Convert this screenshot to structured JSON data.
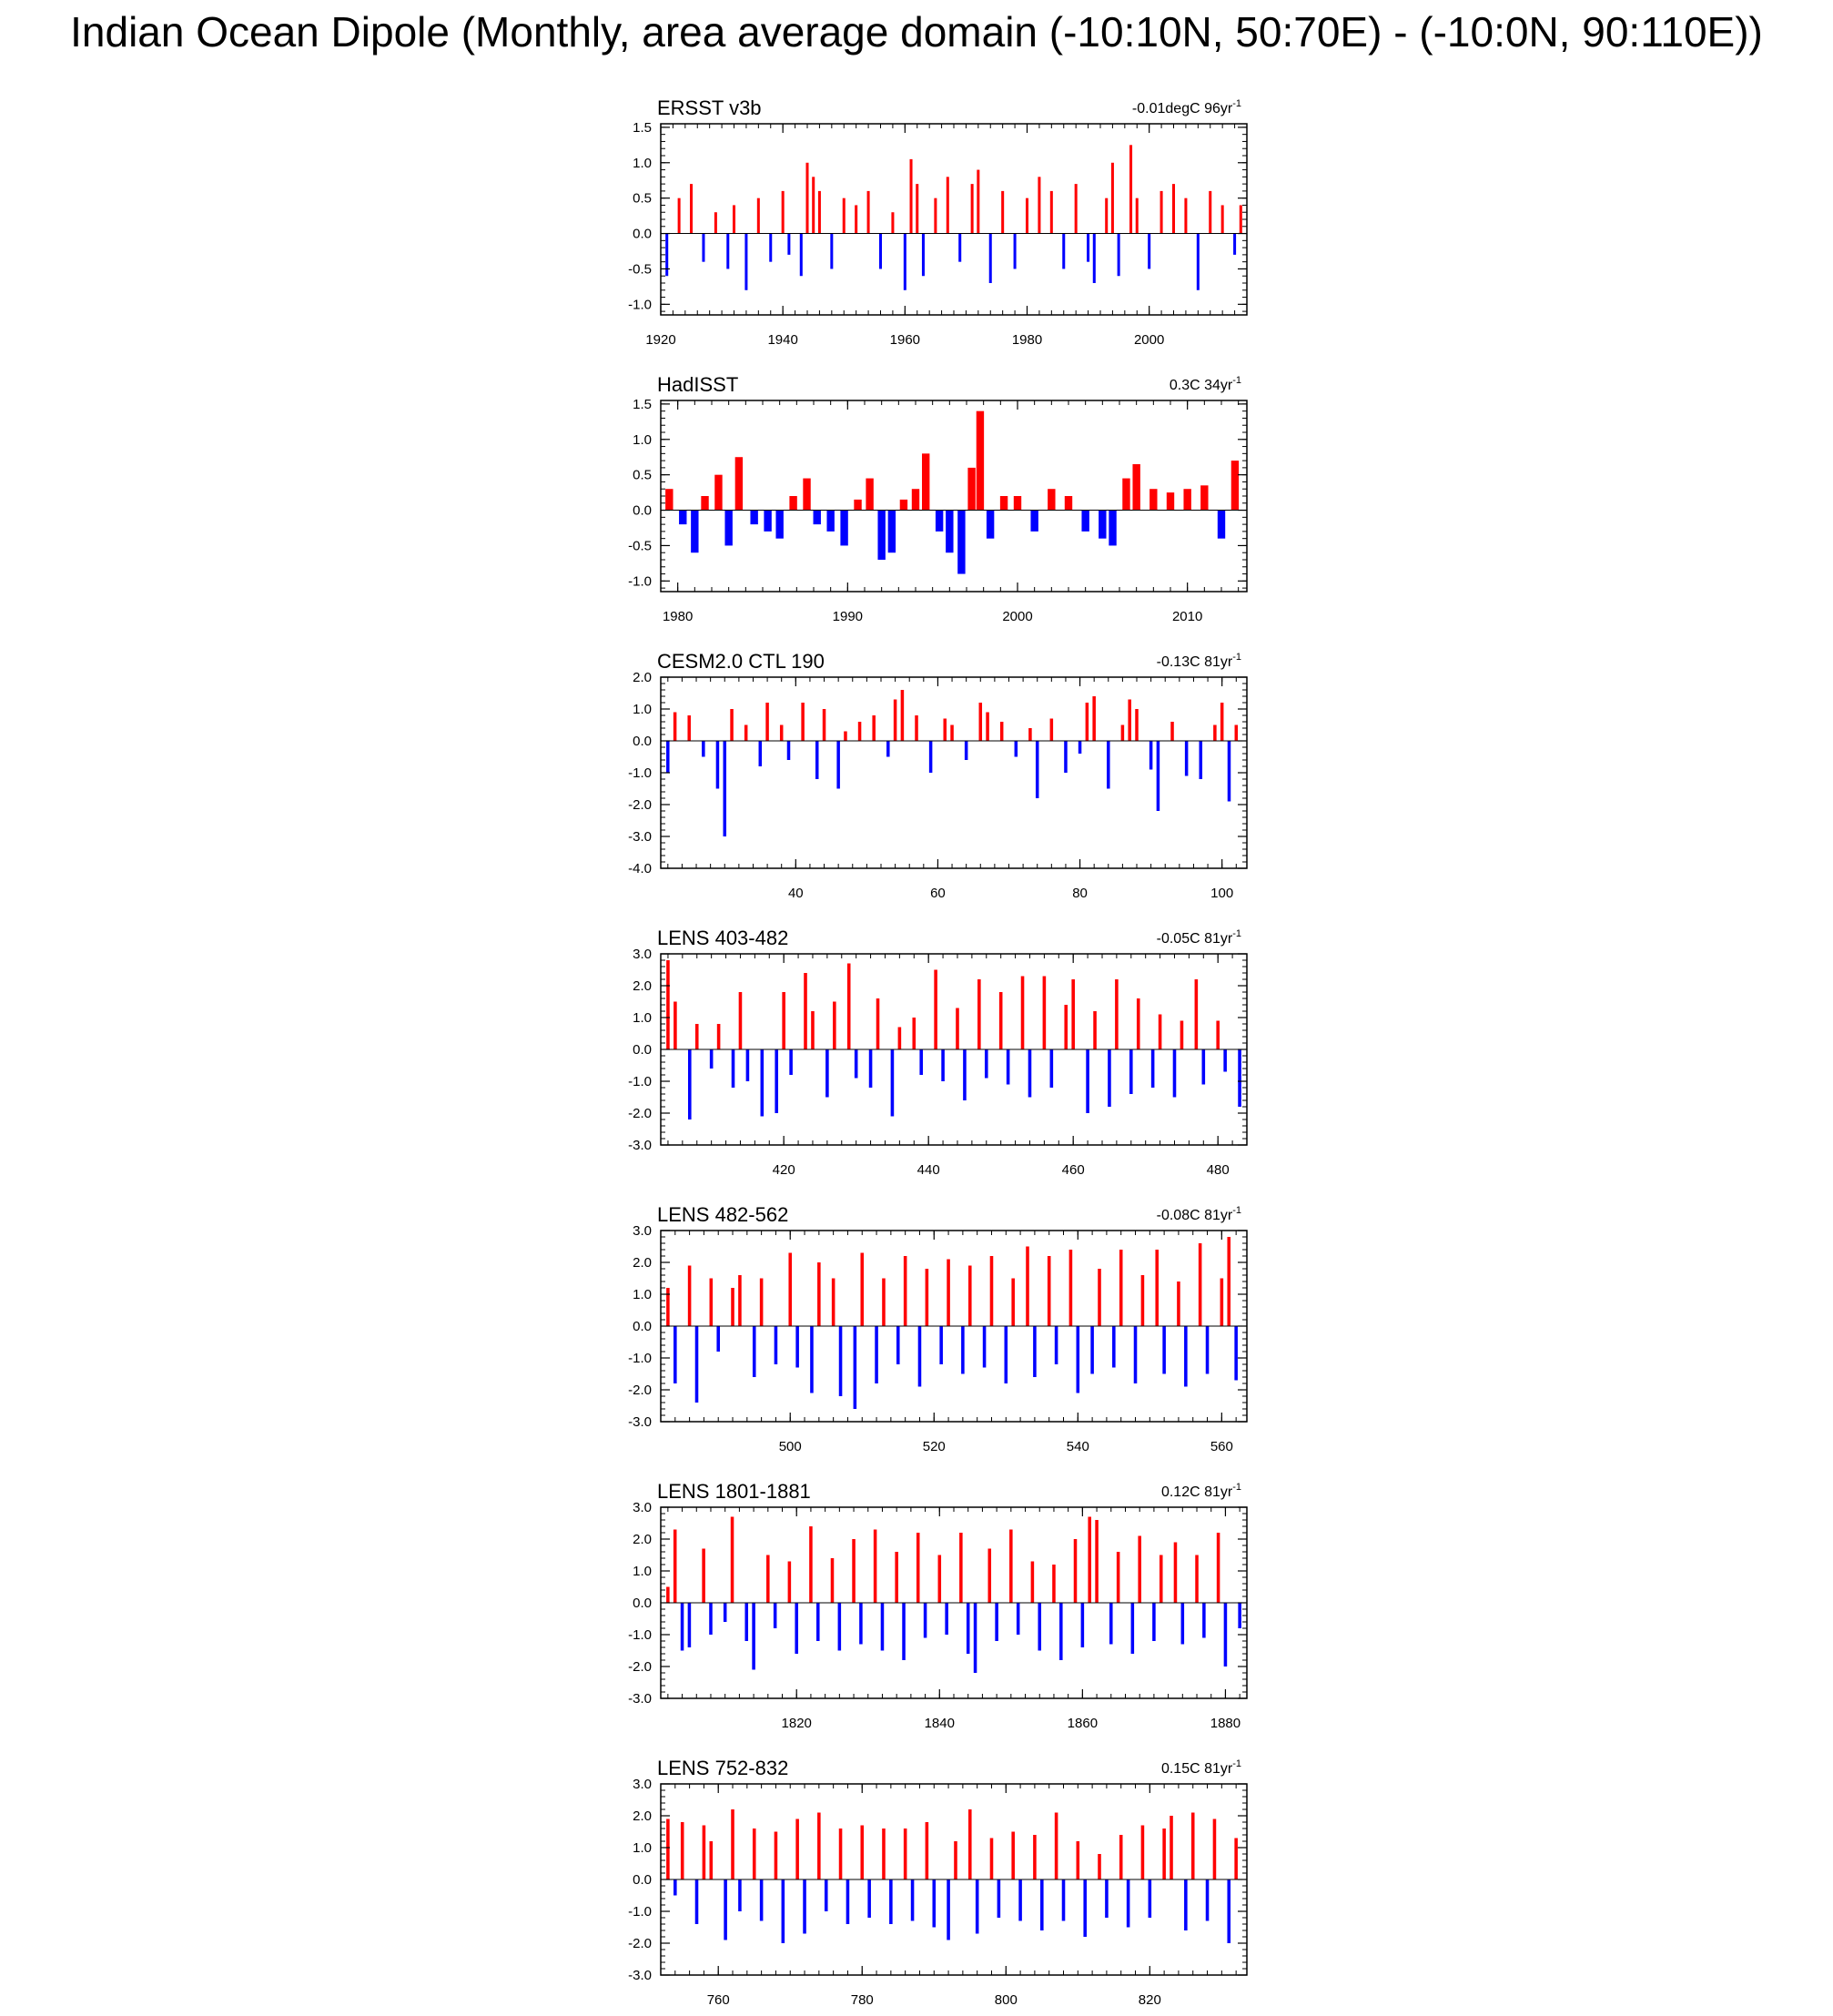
{
  "title": "Indian Ocean Dipole (Monthly, area average domain (-10:10N, 50:70E) - (-10:0N, 90:110E))",
  "colors": {
    "positive": "#ff0000",
    "negative": "#0000ff",
    "axis": "#000000",
    "zero": "#000000"
  },
  "chart_data": [
    {
      "type": "bar",
      "title": "ERSST v3b",
      "trend": "-0.01degC 96yr",
      "trend_sup": "-1",
      "xlim": [
        1920,
        2016
      ],
      "ylim": [
        -1.15,
        1.55
      ],
      "xticks": [
        1920,
        1940,
        1960,
        1980,
        2000
      ],
      "xtick_labels": [
        "1920",
        "1940",
        "1960",
        "1980",
        "2000"
      ],
      "yticks": [
        -1.0,
        -0.5,
        0.0,
        0.5,
        1.0,
        1.5
      ],
      "ytick_labels": [
        "-1.0",
        "-0.5",
        "0.0",
        "0.5",
        "1.0",
        "1.5"
      ],
      "series": [
        {
          "x": [
            1921,
            1923,
            1925,
            1927,
            1929,
            1931,
            1932,
            1934,
            1936,
            1938,
            1940,
            1941,
            1943,
            1944,
            1945,
            1946,
            1948,
            1950,
            1952,
            1954,
            1956,
            1958,
            1960,
            1961,
            1962,
            1963,
            1965,
            1967,
            1969,
            1971,
            1972,
            1974,
            1976,
            1978,
            1980,
            1982,
            1984,
            1986,
            1988,
            1990,
            1991,
            1993,
            1994,
            1995,
            1997,
            1998,
            2000,
            2002,
            2004,
            2006,
            2008,
            2010,
            2012,
            2014,
            2015
          ],
          "values": [
            -0.6,
            0.5,
            0.7,
            -0.4,
            0.3,
            -0.5,
            0.4,
            -0.8,
            0.5,
            -0.4,
            0.6,
            -0.3,
            -0.6,
            1.0,
            0.8,
            0.6,
            -0.5,
            0.5,
            0.4,
            0.6,
            -0.5,
            0.3,
            -0.8,
            1.05,
            0.7,
            -0.6,
            0.5,
            0.8,
            -0.4,
            0.7,
            0.9,
            -0.7,
            0.6,
            -0.5,
            0.5,
            0.8,
            0.6,
            -0.5,
            0.7,
            -0.4,
            -0.7,
            0.5,
            1.0,
            -0.6,
            1.25,
            0.5,
            -0.5,
            0.6,
            0.7,
            0.5,
            -0.8,
            0.6,
            0.4,
            -0.3,
            0.4
          ]
        }
      ]
    },
    {
      "type": "bar",
      "title": "HadISST",
      "trend": "0.3C 34yr",
      "trend_sup": "-1",
      "xlim": [
        1979,
        2013.5
      ],
      "ylim": [
        -1.15,
        1.55
      ],
      "xticks": [
        1980,
        1990,
        2000,
        2010
      ],
      "xtick_labels": [
        "1980",
        "1990",
        "2000",
        "2010"
      ],
      "yticks": [
        -1.0,
        -0.5,
        0.0,
        0.5,
        1.0,
        1.5
      ],
      "ytick_labels": [
        "-1.0",
        "-0.5",
        "0.0",
        "0.5",
        "1.0",
        "1.5"
      ],
      "series": [
        {
          "x": [
            1979.5,
            1980.3,
            1981,
            1981.6,
            1982.4,
            1983,
            1983.6,
            1984.5,
            1985.3,
            1986,
            1986.8,
            1987.6,
            1988.2,
            1989,
            1989.8,
            1990.6,
            1991.3,
            1992,
            1992.6,
            1993.3,
            1994,
            1994.6,
            1995.4,
            1996,
            1996.7,
            1997.3,
            1997.8,
            1998.4,
            1999.2,
            2000,
            2001,
            2002,
            2003,
            2004,
            2005,
            2005.6,
            2006.4,
            2007,
            2008,
            2009,
            2010,
            2011,
            2012,
            2012.8
          ],
          "values": [
            0.3,
            -0.2,
            -0.6,
            0.2,
            0.5,
            -0.5,
            0.75,
            -0.2,
            -0.3,
            -0.4,
            0.2,
            0.45,
            -0.2,
            -0.3,
            -0.5,
            0.15,
            0.45,
            -0.7,
            -0.6,
            0.15,
            0.3,
            0.8,
            -0.3,
            -0.6,
            -0.9,
            0.6,
            1.4,
            -0.4,
            0.2,
            0.2,
            -0.3,
            0.3,
            0.2,
            -0.3,
            -0.4,
            -0.5,
            0.45,
            0.65,
            0.3,
            0.25,
            0.3,
            0.35,
            -0.4,
            0.7
          ]
        }
      ]
    },
    {
      "type": "bar",
      "title": "CESM2.0 CTL 190",
      "trend": "-0.13C 81yr",
      "trend_sup": "-1",
      "xlim": [
        21,
        103.5
      ],
      "ylim": [
        -4.0,
        2.0
      ],
      "xticks": [
        40,
        60,
        80,
        100
      ],
      "xtick_labels": [
        "40",
        "60",
        "80",
        "100"
      ],
      "yticks": [
        -4.0,
        -3.0,
        -2.0,
        -1.0,
        0.0,
        1.0,
        2.0
      ],
      "ytick_labels": [
        "-4.0",
        "-3.0",
        "-2.0",
        "-1.0",
        "0.0",
        "1.0",
        "2.0"
      ],
      "series": [
        {
          "x": [
            22,
            23,
            25,
            27,
            29,
            30,
            31,
            33,
            35,
            36,
            38,
            39,
            41,
            43,
            44,
            46,
            47,
            49,
            51,
            53,
            54,
            55,
            57,
            59,
            61,
            62,
            64,
            66,
            67,
            69,
            71,
            73,
            74,
            76,
            78,
            80,
            81,
            82,
            84,
            86,
            87,
            88,
            90,
            91,
            93,
            95,
            97,
            99,
            100,
            101,
            102
          ],
          "values": [
            -1.0,
            0.9,
            0.8,
            -0.5,
            -1.5,
            -3.0,
            1.0,
            0.5,
            -0.8,
            1.2,
            0.5,
            -0.6,
            1.2,
            -1.2,
            1.0,
            -1.5,
            0.3,
            0.6,
            0.8,
            -0.5,
            1.3,
            1.6,
            0.8,
            -1.0,
            0.7,
            0.5,
            -0.6,
            1.2,
            0.9,
            0.6,
            -0.5,
            0.4,
            -1.8,
            0.7,
            -1.0,
            -0.4,
            1.2,
            1.4,
            -1.5,
            0.5,
            1.3,
            1.0,
            -0.9,
            -2.2,
            0.6,
            -1.1,
            -1.2,
            0.5,
            1.2,
            -1.9,
            0.5
          ]
        }
      ]
    },
    {
      "type": "bar",
      "title": "LENS 403-482",
      "trend": "-0.05C 81yr",
      "trend_sup": "-1",
      "xlim": [
        403,
        484
      ],
      "ylim": [
        -3.0,
        3.0
      ],
      "xticks": [
        420,
        440,
        460,
        480
      ],
      "xtick_labels": [
        "420",
        "440",
        "460",
        "480"
      ],
      "yticks": [
        -3.0,
        -2.0,
        -1.0,
        0.0,
        1.0,
        2.0,
        3.0
      ],
      "ytick_labels": [
        "-3.0",
        "-2.0",
        "-1.0",
        "0.0",
        "1.0",
        "2.0",
        "3.0"
      ],
      "series": [
        {
          "x": [
            404,
            405,
            407,
            408,
            410,
            411,
            413,
            414,
            415,
            417,
            419,
            420,
            421,
            423,
            424,
            426,
            427,
            429,
            430,
            432,
            433,
            435,
            436,
            438,
            439,
            441,
            442,
            444,
            445,
            447,
            448,
            450,
            451,
            453,
            454,
            456,
            457,
            459,
            460,
            462,
            463,
            465,
            466,
            468,
            469,
            471,
            472,
            474,
            475,
            477,
            478,
            480,
            481,
            483
          ],
          "values": [
            2.8,
            1.5,
            -2.2,
            0.8,
            -0.6,
            0.8,
            -1.2,
            1.8,
            -1.0,
            -2.1,
            -2.0,
            1.8,
            -0.8,
            2.4,
            1.2,
            -1.5,
            1.5,
            2.7,
            -0.9,
            -1.2,
            1.6,
            -2.1,
            0.7,
            1.0,
            -0.8,
            2.5,
            -1.0,
            1.3,
            -1.6,
            2.2,
            -0.9,
            1.8,
            -1.1,
            2.3,
            -1.5,
            2.3,
            -1.2,
            1.4,
            2.2,
            -2.0,
            1.2,
            -1.8,
            2.2,
            -1.4,
            1.6,
            -1.2,
            1.1,
            -1.5,
            0.9,
            2.2,
            -1.1,
            0.9,
            -0.7,
            -1.8
          ]
        }
      ]
    },
    {
      "type": "bar",
      "title": "LENS 482-562",
      "trend": "-0.08C 81yr",
      "trend_sup": "-1",
      "xlim": [
        482,
        563.5
      ],
      "ylim": [
        -3.0,
        3.0
      ],
      "xticks": [
        500,
        520,
        540,
        560
      ],
      "xtick_labels": [
        "500",
        "520",
        "540",
        "560"
      ],
      "yticks": [
        -3.0,
        -2.0,
        -1.0,
        0.0,
        1.0,
        2.0,
        3.0
      ],
      "ytick_labels": [
        "-3.0",
        "-2.0",
        "-1.0",
        "0.0",
        "1.0",
        "2.0",
        "3.0"
      ],
      "series": [
        {
          "x": [
            483,
            484,
            486,
            487,
            489,
            490,
            492,
            493,
            495,
            496,
            498,
            500,
            501,
            503,
            504,
            506,
            507,
            509,
            510,
            512,
            513,
            515,
            516,
            518,
            519,
            521,
            522,
            524,
            525,
            527,
            528,
            530,
            531,
            533,
            534,
            536,
            537,
            539,
            540,
            542,
            543,
            545,
            546,
            548,
            549,
            551,
            552,
            554,
            555,
            557,
            558,
            560,
            561,
            562
          ],
          "values": [
            1.2,
            -1.8,
            1.9,
            -2.4,
            1.5,
            -0.8,
            1.2,
            1.6,
            -1.6,
            1.5,
            -1.2,
            2.3,
            -1.3,
            -2.1,
            2.0,
            1.5,
            -2.2,
            -2.6,
            2.3,
            -1.8,
            1.5,
            -1.2,
            2.2,
            -1.9,
            1.8,
            -1.2,
            2.1,
            -1.5,
            1.9,
            -1.3,
            2.2,
            -1.8,
            1.5,
            2.5,
            -1.6,
            2.2,
            -1.2,
            2.4,
            -2.1,
            -1.5,
            1.8,
            -1.3,
            2.4,
            -1.8,
            1.6,
            2.4,
            -1.5,
            1.4,
            -1.9,
            2.6,
            -1.5,
            1.5,
            2.8,
            -1.7
          ]
        }
      ]
    },
    {
      "type": "bar",
      "title": "LENS 1801-1881",
      "trend": "0.12C 81yr",
      "trend_sup": "-1",
      "xlim": [
        1801,
        1883
      ],
      "ylim": [
        -3.0,
        3.0
      ],
      "xticks": [
        1820,
        1840,
        1860,
        1880
      ],
      "xtick_labels": [
        "1820",
        "1840",
        "1860",
        "1880"
      ],
      "yticks": [
        -3.0,
        -2.0,
        -1.0,
        0.0,
        1.0,
        2.0,
        3.0
      ],
      "ytick_labels": [
        "-3.0",
        "-2.0",
        "-1.0",
        "0.0",
        "1.0",
        "2.0",
        "3.0"
      ],
      "series": [
        {
          "x": [
            1802,
            1803,
            1804,
            1805,
            1807,
            1808,
            1810,
            1811,
            1813,
            1814,
            1816,
            1817,
            1819,
            1820,
            1822,
            1823,
            1825,
            1826,
            1828,
            1829,
            1831,
            1832,
            1834,
            1835,
            1837,
            1838,
            1840,
            1841,
            1843,
            1844,
            1845,
            1847,
            1848,
            1850,
            1851,
            1853,
            1854,
            1856,
            1857,
            1859,
            1860,
            1861,
            1862,
            1864,
            1865,
            1867,
            1868,
            1870,
            1871,
            1873,
            1874,
            1876,
            1877,
            1879,
            1880,
            1882
          ],
          "values": [
            0.5,
            2.3,
            -1.5,
            -1.4,
            1.7,
            -1.0,
            -0.6,
            2.7,
            -1.2,
            -2.1,
            1.5,
            -0.8,
            1.3,
            -1.6,
            2.4,
            -1.2,
            1.4,
            -1.5,
            2.0,
            -1.3,
            2.3,
            -1.5,
            1.6,
            -1.8,
            2.2,
            -1.1,
            1.5,
            -1.0,
            2.2,
            -1.6,
            -2.2,
            1.7,
            -1.2,
            2.3,
            -1.0,
            1.3,
            -1.5,
            1.2,
            -1.8,
            2.0,
            -1.4,
            2.7,
            2.6,
            -1.3,
            1.6,
            -1.6,
            2.1,
            -1.2,
            1.5,
            1.9,
            -1.3,
            1.5,
            -1.1,
            2.2,
            -2.0,
            -0.8
          ]
        }
      ]
    },
    {
      "type": "bar",
      "title": "LENS 752-832",
      "trend": "0.15C 81yr",
      "trend_sup": "-1",
      "xlim": [
        752,
        833.5
      ],
      "ylim": [
        -3.0,
        3.0
      ],
      "xticks": [
        760,
        780,
        800,
        820
      ],
      "xtick_labels": [
        "760",
        "780",
        "800",
        "820"
      ],
      "yticks": [
        -3.0,
        -2.0,
        -1.0,
        0.0,
        1.0,
        2.0,
        3.0
      ],
      "ytick_labels": [
        "-3.0",
        "-2.0",
        "-1.0",
        "0.0",
        "1.0",
        "2.0",
        "3.0"
      ],
      "series": [
        {
          "x": [
            753,
            754,
            755,
            757,
            758,
            759,
            761,
            762,
            763,
            765,
            766,
            768,
            769,
            771,
            772,
            774,
            775,
            777,
            778,
            780,
            781,
            783,
            784,
            786,
            787,
            789,
            790,
            792,
            793,
            795,
            796,
            798,
            799,
            801,
            802,
            804,
            805,
            807,
            808,
            810,
            811,
            813,
            814,
            816,
            817,
            819,
            820,
            822,
            823,
            825,
            826,
            828,
            829,
            831,
            832
          ],
          "values": [
            1.9,
            -0.5,
            1.8,
            -1.4,
            1.7,
            1.2,
            -1.9,
            2.2,
            -1.0,
            1.6,
            -1.3,
            1.5,
            -2.0,
            1.9,
            -1.7,
            2.1,
            -1.0,
            1.6,
            -1.4,
            1.7,
            -1.2,
            1.6,
            -1.4,
            1.6,
            -1.3,
            1.8,
            -1.5,
            -1.9,
            1.2,
            2.2,
            -1.7,
            1.3,
            -1.2,
            1.5,
            -1.3,
            1.4,
            -1.6,
            2.1,
            -1.3,
            1.2,
            -1.8,
            0.8,
            -1.2,
            1.4,
            -1.5,
            1.7,
            -1.2,
            1.6,
            2.0,
            -1.6,
            2.1,
            -1.3,
            1.9,
            -2.0,
            1.3
          ]
        }
      ]
    }
  ]
}
